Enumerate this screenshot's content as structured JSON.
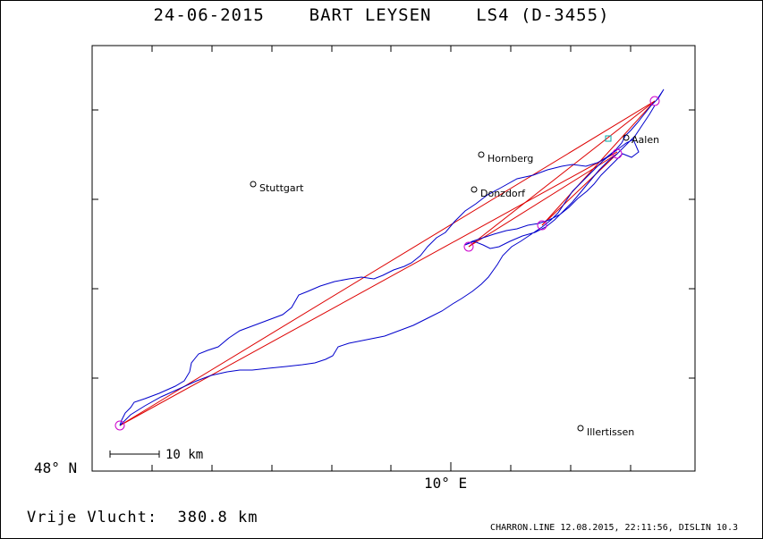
{
  "title": {
    "date": "24-06-2015",
    "pilot": "BART LEYSEN",
    "glider": "LS4 (D-3455)"
  },
  "axes": {
    "lat_label": "48° N",
    "lon_label": "10° E"
  },
  "scale_bar": {
    "label": "10 km"
  },
  "distance": {
    "label": "Vrije Vlucht:",
    "value": "380.8 km"
  },
  "credit": "CHARRON.LINE 12.08.2015, 22:11:56, DISLIN 10.3",
  "towns": [
    {
      "name": "Hornberg"
    },
    {
      "name": "Stuttgart"
    },
    {
      "name": "Donzdorf"
    },
    {
      "name": "Aalen"
    },
    {
      "name": "Illertissen"
    }
  ],
  "colors": {
    "track": "#0000cc",
    "task_line": "#dd0000",
    "turnpoint": "#cc00cc",
    "start_marker": "#00aaaa",
    "frame": "#000000"
  }
}
